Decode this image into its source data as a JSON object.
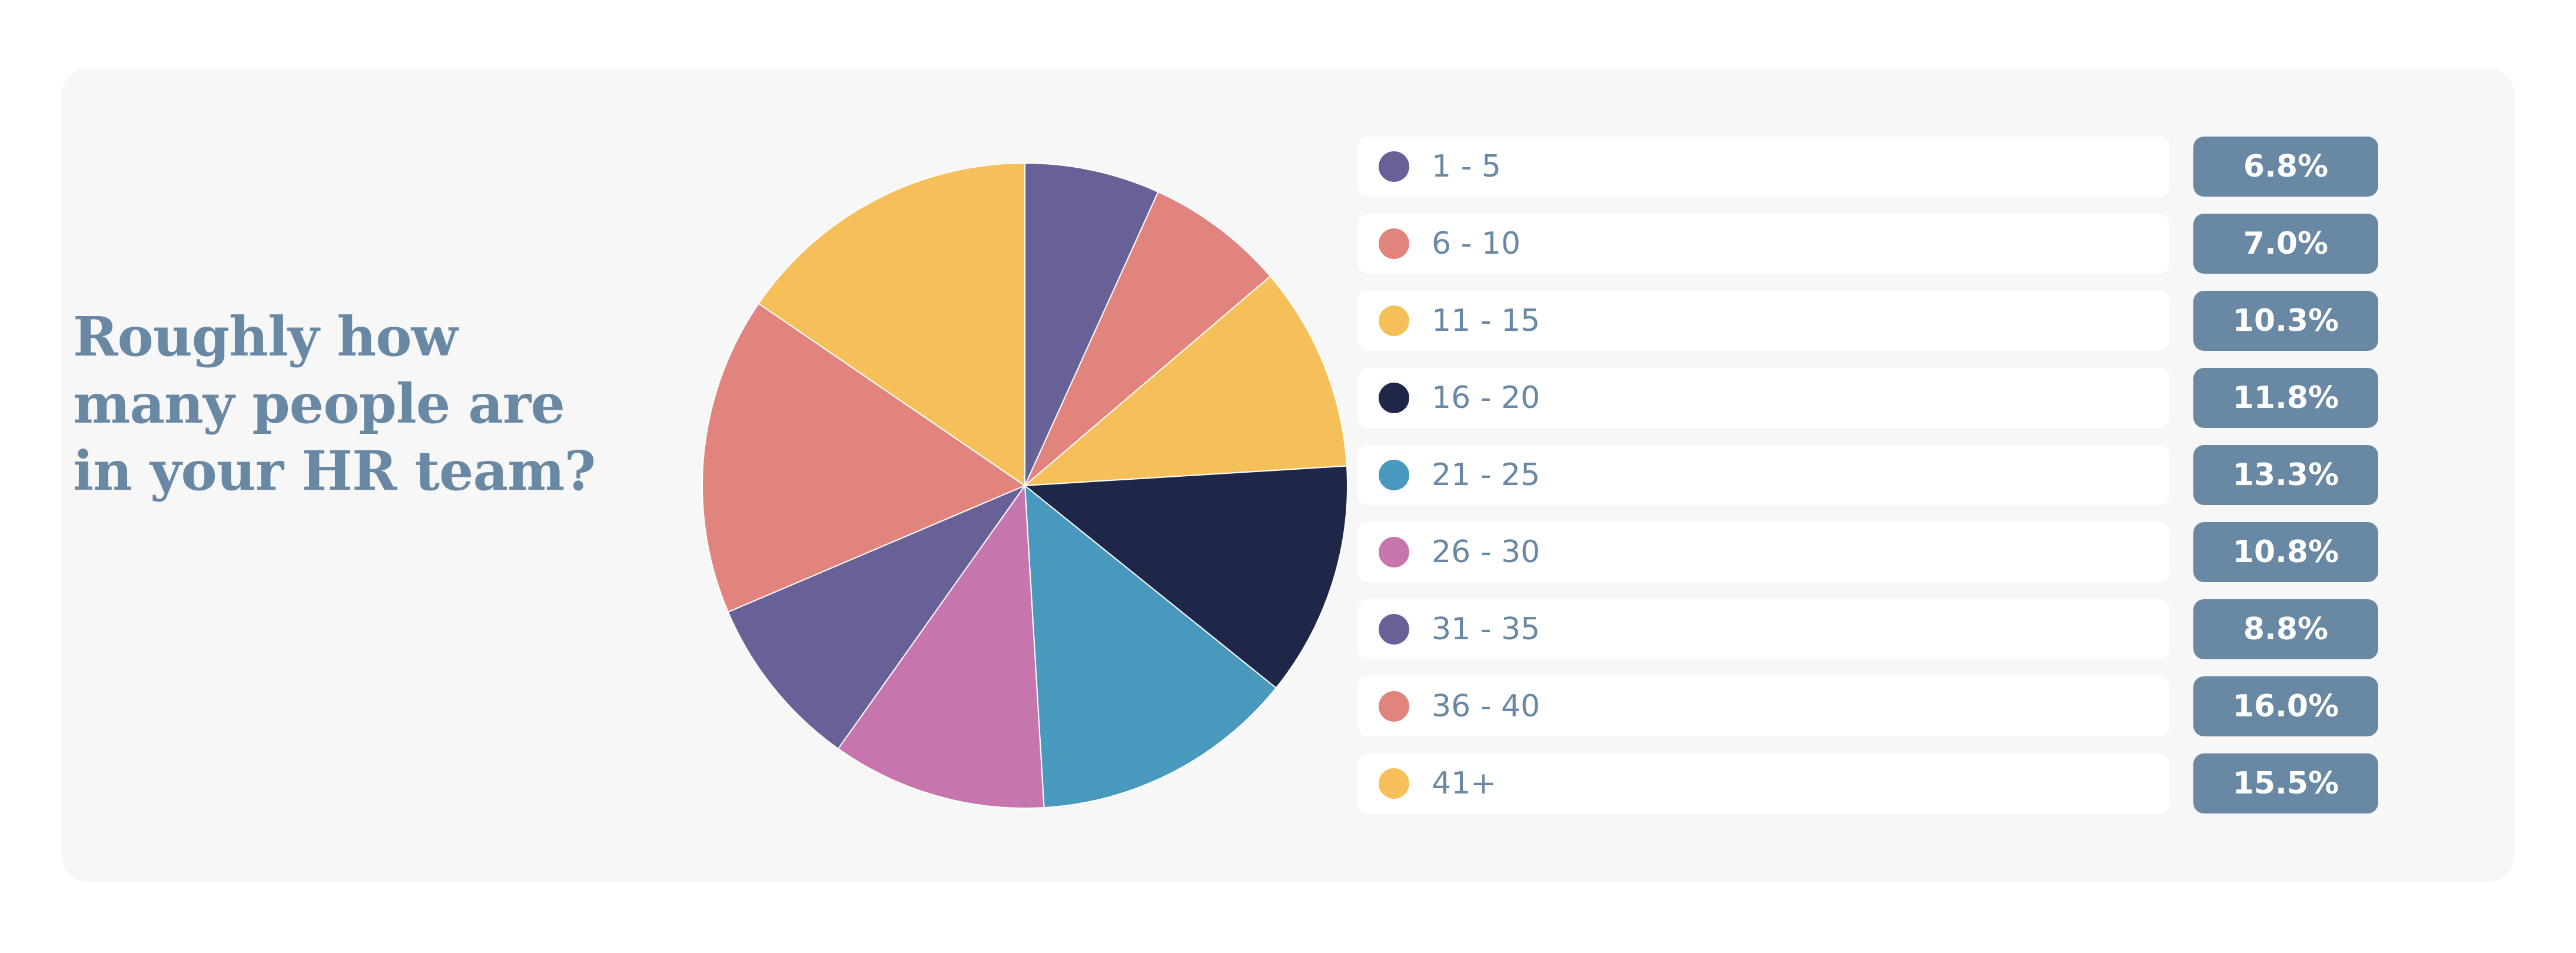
{
  "question": {
    "line1": "Roughly how",
    "line2": "many people are",
    "line3": "in your HR team?"
  },
  "chart_data": {
    "type": "pie",
    "start_angle": "12 o'clock",
    "direction": "clockwise",
    "legend_placement": "right",
    "slices": [
      {
        "label": "1 - 5",
        "value": 6.8,
        "display": "6.8%",
        "color": "#676198"
      },
      {
        "label": "6 - 10",
        "value": 7.0,
        "display": "7.0%",
        "color": "#e1847e"
      },
      {
        "label": "11 - 15",
        "value": 10.3,
        "display": "10.3%",
        "color": "#f5c05a"
      },
      {
        "label": "16 - 20",
        "value": 11.8,
        "display": "11.8%",
        "color": "#1e2748"
      },
      {
        "label": "21 - 25",
        "value": 13.3,
        "display": "13.3%",
        "color": "#4998be"
      },
      {
        "label": "26 - 30",
        "value": 10.8,
        "display": "10.8%",
        "color": "#c776ad"
      },
      {
        "label": "31 - 35",
        "value": 8.8,
        "display": "8.8%",
        "color": "#676198"
      },
      {
        "label": "36 - 40",
        "value": 16.0,
        "display": "16.0%",
        "color": "#e1847e"
      },
      {
        "label": "41+",
        "value": 15.5,
        "display": "15.5%",
        "color": "#f5c05a"
      }
    ]
  }
}
